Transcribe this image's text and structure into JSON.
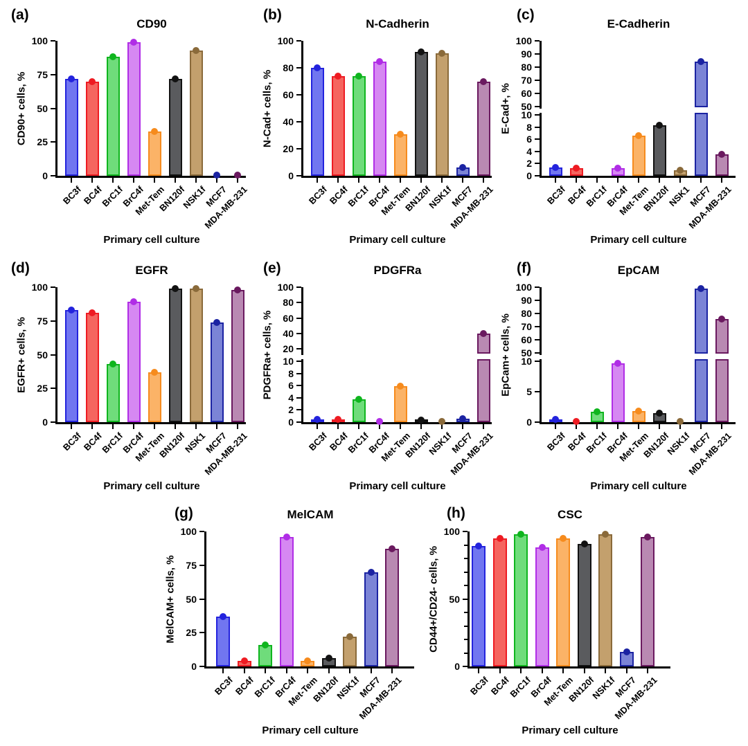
{
  "figure": {
    "background": "#ffffff",
    "description": "Eight-panel bar figure of surface marker expression in primary cell cultures"
  },
  "bar_colors": [
    {
      "label": "BC3f",
      "edge": "#2323dd",
      "fill": "#7176f0"
    },
    {
      "label": "BC4f",
      "edge": "#ee1b22",
      "fill": "#f5655f"
    },
    {
      "label": "BrC1f",
      "edge": "#0fb51e",
      "fill": "#6fdc7b"
    },
    {
      "label": "BrC4f",
      "edge": "#b02de6",
      "fill": "#d688f2"
    },
    {
      "label": "Met-Tem",
      "edge": "#f68b1d",
      "fill": "#fbb367"
    },
    {
      "label": "BN120f",
      "edge": "#121212",
      "fill": "#5a5b5e"
    },
    {
      "label": "NSK1f",
      "edge": "#8a6a3a",
      "fill": "#c3a06d"
    },
    {
      "label": "MCF7",
      "edge": "#1b23a2",
      "fill": "#7b84d6"
    },
    {
      "label": "MDA-MB-231",
      "edge": "#6a195f",
      "fill": "#b989b2"
    }
  ],
  "chart_data": [
    {
      "panel": "(a)",
      "type": "bar",
      "title": "CD90",
      "ylabel": "CD90+ cells, %",
      "xlabel": "Primary cell culture",
      "categories": [
        "BC3f",
        "BC4f",
        "BrC1f",
        "BrC4f",
        "Met-Tem",
        "BN120f",
        "NSK1f",
        "MCF7",
        "MDA-MB-231"
      ],
      "values": [
        72,
        69.5,
        88,
        99,
        33,
        72,
        93,
        0.5,
        0.5
      ],
      "y_axis": {
        "segments": [
          {
            "min": 0,
            "max": 100,
            "ticks": [
              0,
              25,
              50,
              75,
              100
            ]
          }
        ]
      }
    },
    {
      "panel": "(b)",
      "type": "bar",
      "title": "N-Cadherin",
      "ylabel": "N-Cad+ cells, %",
      "xlabel": "Primary cell culture",
      "categories": [
        "BC3f",
        "BC4f",
        "BrC1f",
        "BrC4f",
        "Met-Tem",
        "BN120f",
        "NSK1f",
        "MCF7",
        "MDA-MB-231"
      ],
      "values": [
        80,
        74,
        74,
        84.5,
        31,
        92,
        91,
        6,
        70
      ],
      "y_axis": {
        "segments": [
          {
            "min": 0,
            "max": 100,
            "ticks": [
              0,
              20,
              40,
              60,
              80,
              100
            ]
          }
        ]
      }
    },
    {
      "panel": "(c)",
      "type": "bar",
      "title": "E-Cadherin",
      "ylabel": "E-Cad+, %",
      "xlabel": "Primary cell culture",
      "categories": [
        "BC3f",
        "BC4f",
        "BrC1f",
        "BrC4f",
        "Met-Tem",
        "BN120f",
        "NSK1",
        "MCF7",
        "MDA-MB-231"
      ],
      "values": [
        1.4,
        1.3,
        null,
        1.2,
        6.6,
        8.3,
        0.9,
        84,
        3.5
      ],
      "y_axis": {
        "segments": [
          {
            "min": 0,
            "max": 10,
            "ticks": [
              0,
              2,
              4,
              6,
              8,
              10
            ]
          },
          {
            "min": 50,
            "max": 100,
            "ticks": [
              50,
              60,
              70,
              80,
              90,
              100
            ]
          }
        ],
        "broken": true
      }
    },
    {
      "panel": "(d)",
      "type": "bar",
      "title": "EGFR",
      "ylabel": "EGFR+ cells, %",
      "xlabel": "Primary cell culture",
      "categories": [
        "BC3f",
        "BC4f",
        "BrC1f",
        "BrC4f",
        "Met-Tem",
        "BN120f",
        "NSK1",
        "MCF7",
        "MDA-MB-231"
      ],
      "values": [
        83,
        81,
        43,
        89,
        37,
        99,
        99,
        74,
        98
      ],
      "y_axis": {
        "segments": [
          {
            "min": 0,
            "max": 100,
            "ticks": [
              0,
              25,
              50,
              75,
              100
            ]
          }
        ]
      }
    },
    {
      "panel": "(e)",
      "type": "bar",
      "title": "PDGFRa",
      "ylabel": "PDGFRa+ cells, %",
      "xlabel": "Primary cell culture",
      "categories": [
        "BC3f",
        "BC4f",
        "BrC1f",
        "BrC4f",
        "Met-Tem",
        "BN120f",
        "NSK1f",
        "MCF7",
        "MDA-MB-231"
      ],
      "values": [
        0.5,
        0.5,
        3.7,
        0.15,
        5.9,
        0.35,
        0.15,
        0.6,
        40
      ],
      "y_axis": {
        "segments": [
          {
            "min": 0,
            "max": 10,
            "ticks": [
              0,
              2,
              4,
              6,
              8,
              10
            ]
          },
          {
            "min": 15,
            "max": 100,
            "ticks": [
              20,
              40,
              60,
              80,
              100
            ]
          }
        ],
        "broken": true
      }
    },
    {
      "panel": "(f)",
      "type": "bar",
      "title": "EpCAM",
      "ylabel": "EpCam+ cells, %",
      "xlabel": "Primary cell culture",
      "categories": [
        "BC3f",
        "BC4f",
        "BrC1f",
        "BrC4f",
        "Met-Tem",
        "BN120f",
        "NSK1f",
        "MCF7",
        "MDA-MB-231"
      ],
      "values": [
        0.5,
        0.15,
        1.7,
        9.7,
        1.8,
        1.5,
        0.1,
        99,
        76
      ],
      "y_axis": {
        "segments": [
          {
            "min": 0,
            "max": 10,
            "ticks": [
              0,
              5,
              10
            ]
          },
          {
            "min": 50,
            "max": 100,
            "ticks": [
              50,
              60,
              70,
              80,
              90,
              100
            ]
          }
        ],
        "broken": true
      }
    },
    {
      "panel": "(g)",
      "type": "bar",
      "title": "MelCAM",
      "ylabel": "MelCAM+ cells, %",
      "xlabel": "Primary cell culture",
      "categories": [
        "BC3f",
        "BC4f",
        "BrC1f",
        "BrC4f",
        "Met-Tem",
        "BN120f",
        "NSK1f",
        "MCF7",
        "MDA-MB-231"
      ],
      "values": [
        37,
        4,
        16,
        96,
        4,
        6,
        22,
        70,
        87
      ],
      "y_axis": {
        "segments": [
          {
            "min": 0,
            "max": 100,
            "ticks": [
              0,
              25,
              50,
              75,
              100
            ]
          }
        ]
      }
    },
    {
      "panel": "(h)",
      "type": "bar",
      "title": "CSC",
      "ylabel": "CD44+/CD24- cells, %",
      "xlabel": "Primary cell culture",
      "categories": [
        "BC3f",
        "BC4f",
        "BrC1f",
        "BrC4f",
        "Met-Tem",
        "BN120f",
        "NSK1f",
        "MCF7",
        "MDA-MB-231"
      ],
      "values": [
        89,
        95,
        98,
        88,
        95,
        91,
        98,
        11,
        96
      ],
      "y_axis": {
        "segments": [
          {
            "min": 0,
            "max": 100,
            "ticks": [
              0,
              50,
              100
            ]
          }
        ],
        "minor_tick_step": 10
      }
    }
  ]
}
